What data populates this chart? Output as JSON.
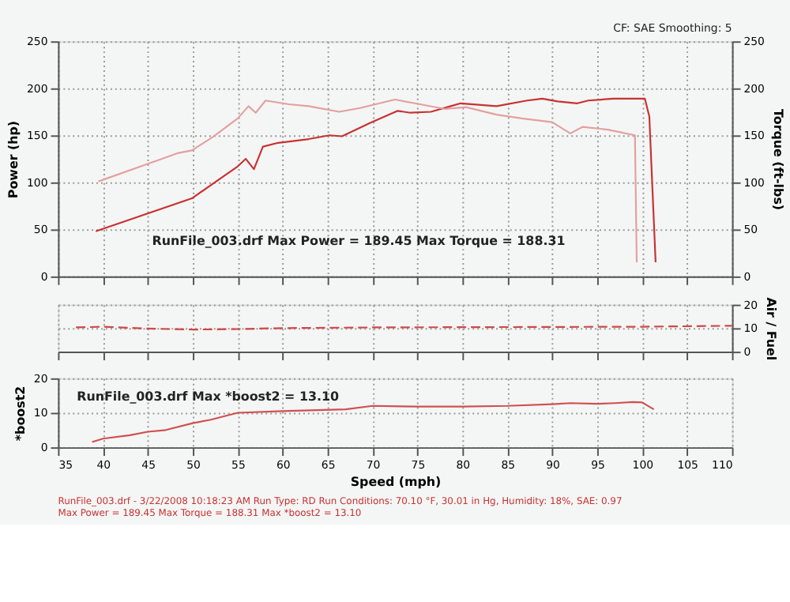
{
  "chart_data": [
    {
      "type": "line",
      "ylabel": "Power (hp)",
      "y2label": "Torque (ft-lbs)",
      "xlim": [
        35,
        110
      ],
      "xticks": [
        35,
        40,
        45,
        50,
        55,
        60,
        65,
        70,
        75,
        80,
        85,
        90,
        95,
        100,
        105,
        110
      ],
      "ylim": [
        0,
        250
      ],
      "yticks": [
        0,
        50,
        100,
        150,
        200,
        250
      ],
      "y2lim": [
        0,
        250
      ],
      "y2ticks": [
        0,
        50,
        100,
        150,
        200,
        250
      ],
      "tick_labels": "y",
      "grid": true,
      "line_style": "solid",
      "series": [
        {
          "color": "#c83232",
          "x": [
            39.2,
            49.9,
            55.0,
            55.9,
            56.8,
            57.8,
            59.5,
            62.9,
            65.2,
            66.6,
            69.7,
            72.8,
            74.2,
            76.5,
            78.7,
            79.8,
            83.8,
            87.2,
            88.9,
            90.6,
            92.8,
            94.0,
            96.8,
            99.0,
            100.3,
            100.8,
            101.5
          ],
          "values": [
            48,
            83,
            117,
            125,
            114,
            138,
            142,
            146,
            150,
            149,
            163,
            176,
            174,
            175,
            181,
            184,
            181,
            187,
            189,
            186,
            184,
            187,
            189,
            189,
            189,
            170,
            15
          ]
        },
        {
          "color": "#e3a0a0",
          "axis": "y2",
          "x": [
            39.5,
            45.4,
            48.3,
            49.9,
            52.2,
            55.0,
            56.2,
            57.0,
            58.1,
            60.7,
            62.9,
            66.3,
            68.6,
            72.5,
            75.3,
            78.1,
            80.4,
            83.8,
            86.6,
            90.0,
            92.0,
            93.4,
            96.2,
            99.2,
            99.4
          ],
          "values": [
            101,
            121,
            131,
            134,
            148,
            168,
            181,
            174,
            187,
            183,
            181,
            175,
            179,
            188,
            183,
            178,
            180,
            172,
            168,
            164,
            152,
            159,
            156,
            150,
            15
          ]
        }
      ],
      "annotations": [
        "CF: SAE  Smoothing: 5",
        "RunFile_003.drf Max Power = 189.45     Max Torque = 188.31"
      ]
    },
    {
      "type": "line",
      "y2label": "Air / Fuel",
      "xlim": [
        35,
        110
      ],
      "xticks": [
        35,
        40,
        45,
        50,
        55,
        60,
        65,
        70,
        75,
        80,
        85,
        90,
        95,
        100,
        105,
        110
      ],
      "y2lim": [
        0,
        20
      ],
      "y2ticks": [
        0,
        10,
        20
      ],
      "tick_labels": "y",
      "grid": true,
      "line_style": "dashed",
      "series": [
        {
          "color": "#d04848",
          "axis": "y2",
          "x": [
            37,
            40,
            45,
            50,
            55,
            60,
            70,
            80,
            90,
            100,
            110
          ],
          "values": [
            10.3,
            10.6,
            9.8,
            9.4,
            9.6,
            10,
            10.3,
            10.4,
            10.5,
            10.6,
            11
          ]
        }
      ]
    },
    {
      "type": "line",
      "ylabel": "*boost2",
      "xlabel": "Speed (mph)",
      "xlim": [
        35,
        110
      ],
      "xticks": [
        35,
        40,
        45,
        50,
        55,
        60,
        65,
        70,
        75,
        80,
        85,
        90,
        95,
        100,
        105,
        110
      ],
      "ylim": [
        0,
        20
      ],
      "yticks": [
        0,
        10,
        20
      ],
      "grid": true,
      "line_style": "solid",
      "series": [
        {
          "color": "#d05050",
          "x": [
            38.8,
            40,
            43,
            45,
            47,
            50,
            52,
            55,
            60,
            67,
            70,
            75,
            80,
            85,
            90,
            92,
            95,
            97,
            99,
            100,
            101.3
          ],
          "values": [
            1.5,
            2.5,
            3.5,
            4.5,
            5,
            7,
            8,
            10,
            10.5,
            11,
            12,
            11.8,
            11.8,
            12,
            12.5,
            12.8,
            12.6,
            12.8,
            13.1,
            13,
            11
          ]
        }
      ],
      "annotations": [
        "RunFile_003.drf Max *boost2 = 13.10",
        "RunFile_003.drf - 3/22/2008 10:18:23 AM  Run Type: RD  Run Conditions: 70.10 °F, 30.01 in Hg, Humidity: 18%, SAE: 0.97",
        "Max Power = 189.45  Max Torque = 188.31  Max *boost2 = 13.10"
      ]
    }
  ]
}
